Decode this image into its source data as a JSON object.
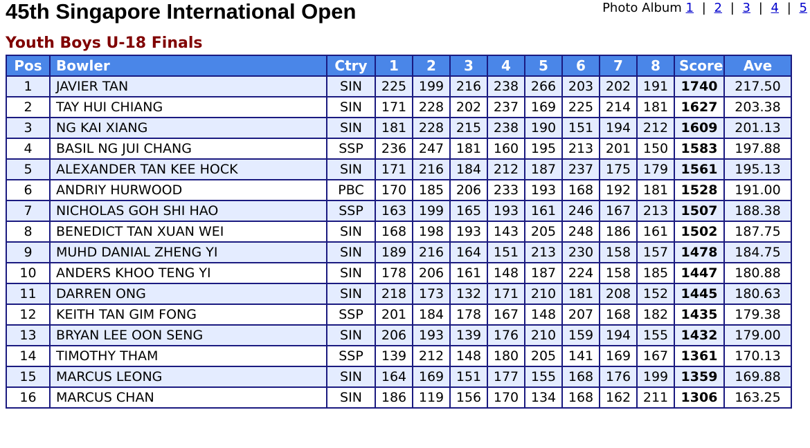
{
  "header": {
    "title": "45th Singapore International Open",
    "subtitle": "Youth Boys U-18 Finals"
  },
  "album": {
    "label": "Photo Album",
    "links": [
      "1",
      "2",
      "3",
      "4",
      "5"
    ],
    "separator": "|"
  },
  "table": {
    "columns": [
      "Pos",
      "Bowler",
      "Ctry",
      "1",
      "2",
      "3",
      "4",
      "5",
      "6",
      "7",
      "8",
      "Score",
      "Ave"
    ],
    "rows": [
      [
        "1",
        "JAVIER TAN",
        "SIN",
        "225",
        "199",
        "216",
        "238",
        "266",
        "203",
        "202",
        "191",
        "1740",
        "217.50"
      ],
      [
        "2",
        "TAY HUI CHIANG",
        "SIN",
        "171",
        "228",
        "202",
        "237",
        "169",
        "225",
        "214",
        "181",
        "1627",
        "203.38"
      ],
      [
        "3",
        "NG KAI XIANG",
        "SIN",
        "181",
        "228",
        "215",
        "238",
        "190",
        "151",
        "194",
        "212",
        "1609",
        "201.13"
      ],
      [
        "4",
        "BASIL NG JUI CHANG",
        "SSP",
        "236",
        "247",
        "181",
        "160",
        "195",
        "213",
        "201",
        "150",
        "1583",
        "197.88"
      ],
      [
        "5",
        "ALEXANDER TAN KEE HOCK",
        "SIN",
        "171",
        "216",
        "184",
        "212",
        "187",
        "237",
        "175",
        "179",
        "1561",
        "195.13"
      ],
      [
        "6",
        "ANDRIY HURWOOD",
        "PBC",
        "170",
        "185",
        "206",
        "233",
        "193",
        "168",
        "192",
        "181",
        "1528",
        "191.00"
      ],
      [
        "7",
        "NICHOLAS GOH SHI HAO",
        "SSP",
        "163",
        "199",
        "165",
        "193",
        "161",
        "246",
        "167",
        "213",
        "1507",
        "188.38"
      ],
      [
        "8",
        "BENEDICT TAN XUAN WEI",
        "SIN",
        "168",
        "198",
        "193",
        "143",
        "205",
        "248",
        "186",
        "161",
        "1502",
        "187.75"
      ],
      [
        "9",
        "MUHD DANIAL ZHENG YI",
        "SIN",
        "189",
        "216",
        "164",
        "151",
        "213",
        "230",
        "158",
        "157",
        "1478",
        "184.75"
      ],
      [
        "10",
        "ANDERS KHOO TENG YI",
        "SIN",
        "178",
        "206",
        "161",
        "148",
        "187",
        "224",
        "158",
        "185",
        "1447",
        "180.88"
      ],
      [
        "11",
        "DARREN ONG",
        "SIN",
        "218",
        "173",
        "132",
        "171",
        "210",
        "181",
        "208",
        "152",
        "1445",
        "180.63"
      ],
      [
        "12",
        "KEITH TAN GIM FONG",
        "SSP",
        "201",
        "184",
        "178",
        "167",
        "148",
        "207",
        "168",
        "182",
        "1435",
        "179.38"
      ],
      [
        "13",
        "BRYAN LEE OON SENG",
        "SIN",
        "206",
        "193",
        "139",
        "176",
        "210",
        "159",
        "194",
        "155",
        "1432",
        "179.00"
      ],
      [
        "14",
        "TIMOTHY THAM",
        "SSP",
        "139",
        "212",
        "148",
        "180",
        "205",
        "141",
        "169",
        "167",
        "1361",
        "170.13"
      ],
      [
        "15",
        "MARCUS LEONG",
        "SIN",
        "164",
        "169",
        "151",
        "177",
        "155",
        "168",
        "176",
        "199",
        "1359",
        "169.88"
      ],
      [
        "16",
        "MARCUS CHAN",
        "SIN",
        "186",
        "119",
        "156",
        "170",
        "134",
        "168",
        "162",
        "211",
        "1306",
        "163.25"
      ]
    ]
  },
  "colors": {
    "header_bg": "#4a86e8",
    "odd_row_bg": "#e4ecff",
    "border": "#1a1a80",
    "subtitle": "#800000",
    "link": "#0000cc"
  }
}
